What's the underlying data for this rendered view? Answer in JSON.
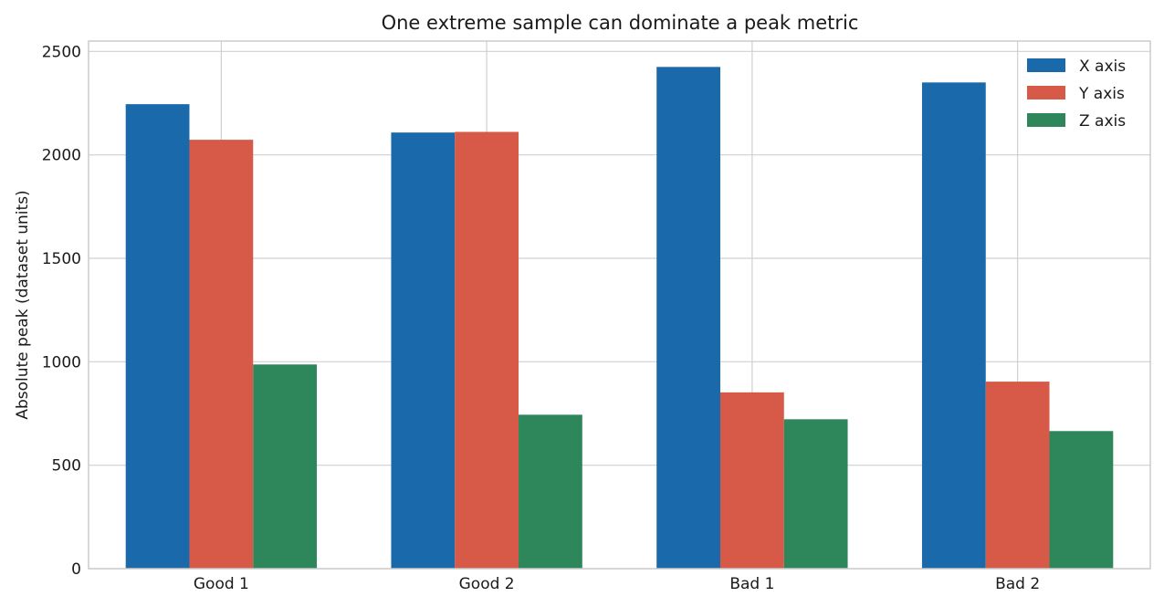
{
  "chart_data": {
    "type": "bar",
    "title": "One extreme sample can dominate a peak metric",
    "xlabel": "",
    "ylabel": "Absolute peak (dataset units)",
    "categories": [
      "Good 1",
      "Good 2",
      "Bad 1",
      "Bad 2"
    ],
    "series": [
      {
        "name": "X axis",
        "color": "#1a69ab",
        "values": [
          2245,
          2108,
          2425,
          2350
        ]
      },
      {
        "name": "Y axis",
        "color": "#d65a47",
        "values": [
          2073,
          2111,
          852,
          904
        ]
      },
      {
        "name": "Z axis",
        "color": "#2e875a",
        "values": [
          987,
          744,
          722,
          665
        ]
      }
    ],
    "ylim": [
      0,
      2550
    ],
    "yticks": [
      0,
      500,
      1000,
      1500,
      2000,
      2500
    ],
    "ytick_labels": [
      "0",
      "500",
      "1000",
      "1500",
      "2000",
      "2500"
    ],
    "grid": true,
    "legend_position": "top-right"
  }
}
